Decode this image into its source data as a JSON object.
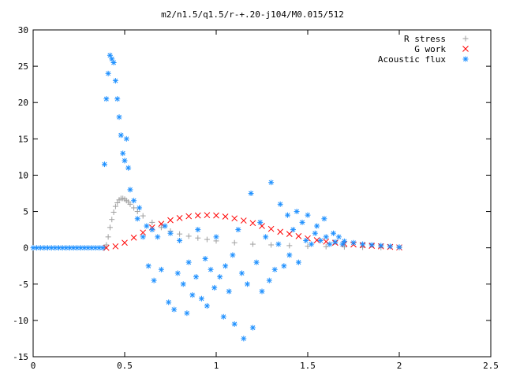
{
  "chart_data": {
    "type": "scatter",
    "title": "m2/n1.5/q1.5/r-+.20-j104/M0.015/512",
    "xlabel": "",
    "ylabel": "",
    "xlim": [
      0,
      2.5
    ],
    "ylim": [
      -15,
      30
    ],
    "xticks": [
      "0",
      "0.5",
      "1",
      "1.5",
      "2",
      "2.5"
    ],
    "yticks": [
      "-15",
      "-10",
      "-5",
      "0",
      "5",
      "10",
      "15",
      "20",
      "25",
      "30"
    ],
    "grid": false,
    "legend": "top-right",
    "series": [
      {
        "name": "R stress",
        "marker": "plus",
        "color": "#a0a0a0",
        "x": [
          0.39,
          0.4,
          0.41,
          0.42,
          0.43,
          0.44,
          0.45,
          0.46,
          0.47,
          0.48,
          0.49,
          0.5,
          0.51,
          0.52,
          0.53,
          0.55,
          0.57,
          0.6,
          0.65,
          0.7,
          0.75,
          0.8,
          0.85,
          0.9,
          0.95,
          1.0,
          1.1,
          1.2,
          1.3,
          1.4,
          1.5,
          1.6,
          1.7,
          1.8,
          1.9,
          2.0
        ],
        "y": [
          0.0,
          0.4,
          1.5,
          2.8,
          3.9,
          4.9,
          5.7,
          6.2,
          6.6,
          6.8,
          6.8,
          6.7,
          6.5,
          6.3,
          6.0,
          5.5,
          5.0,
          4.4,
          3.5,
          2.8,
          2.3,
          1.9,
          1.6,
          1.35,
          1.15,
          0.95,
          0.7,
          0.5,
          0.4,
          0.3,
          0.22,
          0.16,
          0.12,
          0.08,
          0.05,
          0.03
        ]
      },
      {
        "name": "G work",
        "marker": "cross",
        "color": "#ff0000",
        "x": [
          0.4,
          0.45,
          0.5,
          0.55,
          0.6,
          0.65,
          0.7,
          0.75,
          0.8,
          0.85,
          0.9,
          0.95,
          1.0,
          1.05,
          1.1,
          1.15,
          1.2,
          1.25,
          1.3,
          1.35,
          1.4,
          1.45,
          1.5,
          1.55,
          1.6,
          1.65,
          1.7,
          1.75,
          1.8,
          1.85,
          1.9,
          1.95,
          2.0
        ],
        "y": [
          0.0,
          0.2,
          0.7,
          1.4,
          2.1,
          2.8,
          3.3,
          3.8,
          4.1,
          4.35,
          4.45,
          4.5,
          4.45,
          4.3,
          4.05,
          3.75,
          3.4,
          3.0,
          2.6,
          2.2,
          1.9,
          1.6,
          1.3,
          1.05,
          0.85,
          0.7,
          0.55,
          0.45,
          0.35,
          0.28,
          0.2,
          0.13,
          0.05
        ]
      },
      {
        "name": "Acoustic flux",
        "marker": "star",
        "color": "#1e90ff",
        "x": [
          0.39,
          0.4,
          0.41,
          0.42,
          0.43,
          0.44,
          0.45,
          0.46,
          0.47,
          0.48,
          0.49,
          0.5,
          0.51,
          0.52,
          0.53,
          0.55,
          0.57,
          0.58,
          0.6,
          0.62,
          0.63,
          0.65,
          0.66,
          0.68,
          0.7,
          0.72,
          0.74,
          0.75,
          0.77,
          0.79,
          0.8,
          0.82,
          0.84,
          0.85,
          0.87,
          0.89,
          0.9,
          0.92,
          0.94,
          0.95,
          0.97,
          0.99,
          1.0,
          1.02,
          1.04,
          1.05,
          1.07,
          1.09,
          1.1,
          1.12,
          1.14,
          1.15,
          1.17,
          1.19,
          1.2,
          1.22,
          1.24,
          1.25,
          1.27,
          1.29,
          1.3,
          1.32,
          1.34,
          1.35,
          1.37,
          1.39,
          1.4,
          1.42,
          1.44,
          1.45,
          1.47,
          1.49,
          1.5,
          1.52,
          1.54,
          1.55,
          1.57,
          1.59,
          1.6,
          1.62,
          1.64,
          1.65,
          1.67,
          1.69,
          1.7,
          1.75,
          1.8,
          1.85,
          1.9,
          1.95,
          2.0
        ],
        "y": [
          11.5,
          20.5,
          24.0,
          26.5,
          26.0,
          25.5,
          23.0,
          20.5,
          18.0,
          15.5,
          13.0,
          12.0,
          15.0,
          11.0,
          8.0,
          6.5,
          4.0,
          5.5,
          1.5,
          3.0,
          -2.5,
          2.5,
          -4.5,
          1.5,
          -3.0,
          3.0,
          -7.5,
          2.0,
          -8.5,
          -3.5,
          1.0,
          -5.0,
          -9.0,
          -2.0,
          -6.5,
          -4.0,
          2.5,
          -7.0,
          -1.5,
          -8.0,
          -3.0,
          -5.5,
          1.5,
          -4.0,
          -9.5,
          -2.5,
          -6.0,
          -1.0,
          -10.5,
          2.5,
          -3.5,
          -12.5,
          -5.0,
          7.5,
          -11.0,
          -2.0,
          3.5,
          -6.0,
          1.5,
          -4.5,
          9.0,
          -3.0,
          0.5,
          6.0,
          -2.5,
          4.5,
          -1.0,
          2.5,
          5.0,
          -2.0,
          3.5,
          1.0,
          4.5,
          0.5,
          2.0,
          3.0,
          1.0,
          4.0,
          1.5,
          0.5,
          2.0,
          0.8,
          1.5,
          0.5,
          0.9,
          0.7,
          0.5,
          0.4,
          0.3,
          0.2,
          0.1
        ]
      }
    ]
  }
}
